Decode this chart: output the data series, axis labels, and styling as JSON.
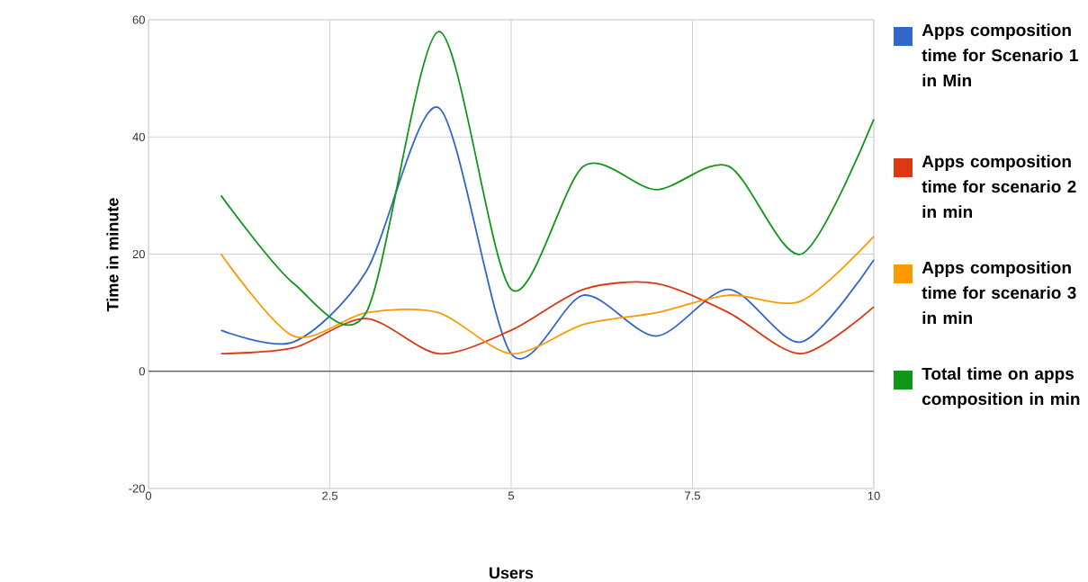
{
  "chart_data": {
    "type": "line",
    "xlabel": "Users",
    "ylabel": "Time in minute",
    "x": [
      1,
      2,
      3,
      4,
      5,
      6,
      7,
      8,
      9,
      10
    ],
    "series": [
      {
        "name": "Apps composition time for Scenario 1 in Min",
        "color": "#3366cc",
        "values": [
          7,
          5,
          17,
          45,
          3,
          13,
          6,
          14,
          5,
          19
        ]
      },
      {
        "name": "Apps composition time for scenario 2 in min",
        "color": "#dc3912",
        "values": [
          3,
          4,
          9,
          3,
          7,
          14,
          15,
          10,
          3,
          11
        ]
      },
      {
        "name": "Apps composition time for scenario 3 in min",
        "color": "#ff9900",
        "values": [
          20,
          6,
          10,
          10,
          3,
          8,
          10,
          13,
          12,
          23
        ]
      },
      {
        "name": "Total time on apps composition in min",
        "color": "#109618",
        "values": [
          30,
          15,
          10,
          58,
          14,
          35,
          31,
          35,
          20,
          43
        ]
      }
    ],
    "xlim": [
      0,
      10
    ],
    "ylim": [
      -20,
      60
    ],
    "xticks": [
      0,
      2.5,
      5,
      7.5,
      10
    ],
    "yticks": [
      -20,
      0,
      20,
      40,
      60
    ],
    "ref_lines": [
      {
        "axis": "y",
        "value": 0,
        "color": "#333333"
      }
    ],
    "grid": true,
    "legend": "right",
    "marker": "none",
    "line_style": "solid"
  }
}
